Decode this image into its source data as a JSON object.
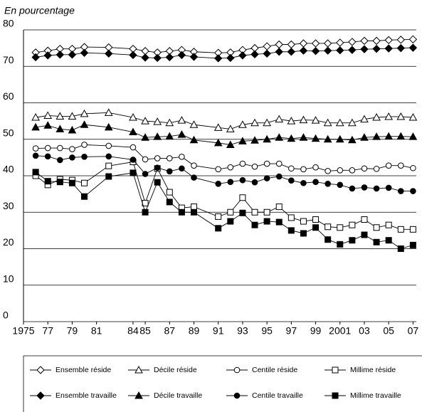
{
  "chart_data": {
    "type": "line",
    "axis_title": "En pourcentage",
    "x": [
      1976,
      1977,
      1978,
      1979,
      1980,
      1982,
      1984,
      1985,
      1986,
      1987,
      1988,
      1989,
      1991,
      1992,
      1993,
      1994,
      1995,
      1996,
      1997,
      1998,
      1999,
      2000,
      2001,
      2002,
      2003,
      2004,
      2005,
      2006,
      2007
    ],
    "xlim": [
      1975,
      2008
    ],
    "xticks": [
      {
        "value": 1975,
        "label": "1975"
      },
      {
        "value": 1977,
        "label": "77"
      },
      {
        "value": 1979,
        "label": "79"
      },
      {
        "value": 1981,
        "label": "81"
      },
      {
        "value": 1984,
        "label": "84"
      },
      {
        "value": 1985,
        "label": "85"
      },
      {
        "value": 1987,
        "label": "87"
      },
      {
        "value": 1989,
        "label": "89"
      },
      {
        "value": 1991,
        "label": "91"
      },
      {
        "value": 1993,
        "label": "93"
      },
      {
        "value": 1995,
        "label": "95"
      },
      {
        "value": 1997,
        "label": "97"
      },
      {
        "value": 1999,
        "label": "99"
      },
      {
        "value": 2001,
        "label": "2001"
      },
      {
        "value": 2003,
        "label": "03"
      },
      {
        "value": 2005,
        "label": "05"
      },
      {
        "value": 2007,
        "label": "07"
      }
    ],
    "ylim": [
      0,
      80
    ],
    "yticks": [
      0,
      10,
      20,
      30,
      40,
      50,
      60,
      70,
      80
    ],
    "grid": true,
    "series": [
      {
        "name": "Ensemble réside",
        "color": "#000000",
        "marker": "diamond",
        "filled": false,
        "values": [
          73.8,
          74.3,
          74.8,
          74.8,
          75.3,
          75.2,
          74.8,
          74.2,
          73.8,
          74.2,
          74.5,
          74,
          73.7,
          73.8,
          74.5,
          75,
          75.5,
          76,
          76,
          76.3,
          76.3,
          76.3,
          76.5,
          76.7,
          77,
          77,
          77.2,
          77.3,
          77.4
        ]
      },
      {
        "name": "Décile réside",
        "color": "#000000",
        "marker": "triangle",
        "filled": false,
        "values": [
          56,
          56.5,
          56.3,
          56.3,
          57,
          57.3,
          56,
          55,
          54.8,
          54.5,
          55.2,
          54,
          53.2,
          52.8,
          54,
          54.5,
          54.5,
          55.5,
          55,
          55.3,
          55.2,
          54.5,
          54.5,
          54.5,
          55.5,
          56,
          56.2,
          56.2,
          56
        ]
      },
      {
        "name": "Centile réside",
        "color": "#000000",
        "marker": "circle",
        "filled": false,
        "values": [
          47.5,
          47.6,
          47.6,
          47.3,
          48.5,
          48.2,
          47.8,
          44.5,
          44.8,
          44.8,
          45.2,
          42.8,
          41.8,
          42.3,
          43.3,
          42.5,
          43.3,
          43.3,
          42,
          41.8,
          42.3,
          41.3,
          41.5,
          41.5,
          42,
          41.9,
          42.8,
          42.8,
          42.1
        ]
      },
      {
        "name": "Millime réside",
        "color": "#000000",
        "marker": "square",
        "filled": false,
        "values": [
          40,
          37.5,
          39,
          38.8,
          38,
          42.7,
          43.8,
          32.5,
          42,
          35.5,
          31.2,
          31.5,
          28.8,
          30,
          34,
          30,
          30,
          31.5,
          28.5,
          27.5,
          28,
          26,
          25.8,
          26.5,
          28,
          25.8,
          26.5,
          25.3,
          25.3
        ]
      },
      {
        "name": "Ensemble travaille",
        "color": "#000000",
        "marker": "diamond",
        "filled": true,
        "values": [
          72.5,
          73,
          73.2,
          73.2,
          73.7,
          73.5,
          73.1,
          72.4,
          72.3,
          72.5,
          73.1,
          72.6,
          72.2,
          72.3,
          73,
          73.3,
          73.5,
          74,
          74,
          74.3,
          74.2,
          74.3,
          74.4,
          74.5,
          74.7,
          74.8,
          74.9,
          75,
          75.1
        ]
      },
      {
        "name": "Décile travaille",
        "color": "#000000",
        "marker": "triangle",
        "filled": true,
        "values": [
          53.3,
          53.8,
          52.8,
          52.5,
          54,
          53.3,
          52,
          50.5,
          50.7,
          50.8,
          51.3,
          49.8,
          49,
          48.5,
          49.5,
          49.7,
          50,
          50.5,
          50.2,
          50.5,
          50.2,
          50,
          50,
          49.8,
          50.5,
          50.7,
          50.8,
          50.8,
          50.7
        ]
      },
      {
        "name": "Centile travaille",
        "color": "#000000",
        "marker": "circle",
        "filled": true,
        "values": [
          45.5,
          45.3,
          44.3,
          45,
          45.2,
          45.3,
          44.4,
          40.5,
          42.2,
          41.2,
          42,
          39.5,
          37.8,
          38.3,
          38.8,
          38.2,
          39.3,
          39.8,
          38.7,
          38,
          38.3,
          37.8,
          37.5,
          36.5,
          36.8,
          36.5,
          36.7,
          35.8,
          35.8
        ]
      },
      {
        "name": "Millime travaille",
        "color": "#000000",
        "marker": "square",
        "filled": true,
        "values": [
          41,
          38.5,
          38.3,
          38,
          34.3,
          39.8,
          40.8,
          30,
          38.2,
          32.8,
          30,
          30,
          25.6,
          27.5,
          29.8,
          26.5,
          27.5,
          27.3,
          25,
          24.2,
          25.8,
          22.5,
          21.2,
          22.3,
          23.8,
          21.8,
          22.3,
          20,
          21
        ]
      }
    ]
  }
}
